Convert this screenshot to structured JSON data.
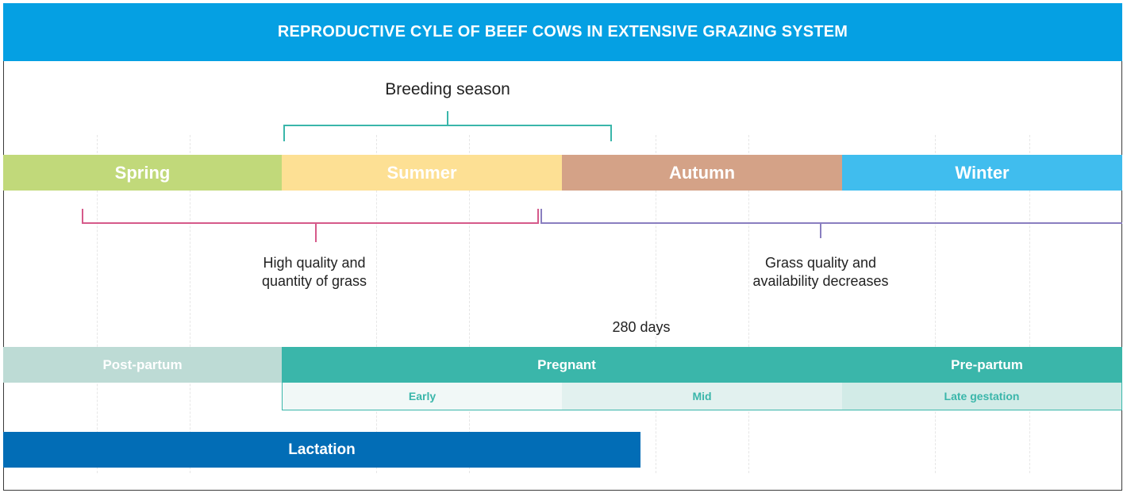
{
  "title": "REPRODUCTIVE CYLE OF BEEF COWS IN EXTENSIVE GRAZING SYSTEM",
  "breeding_season": "Breeding season",
  "seasons": [
    "Spring",
    "Summer",
    "Autumn",
    "Winter"
  ],
  "grass_high": "High quality and quantity of grass",
  "grass_decrease": "Grass quality and availability decreases",
  "days": "280 days",
  "stages": [
    "Post-partum",
    "Pregnant",
    "Pre-partum"
  ],
  "phases": [
    "Early",
    "Mid",
    "Late gestation"
  ],
  "lactation": "Lactation",
  "colors": {
    "header": "#05a0e3",
    "spring": "#c1d97a",
    "summer": "#fde094",
    "autumn": "#d4a287",
    "winter": "#40bdee",
    "post_partum": "#bddbd5",
    "pregnant": "#3ab6aa",
    "lactation": "#026db6",
    "breeding_bracket": "#3ab6aa",
    "high_bracket": "#d65a8a",
    "decrease_bracket": "#8a7fc0"
  }
}
